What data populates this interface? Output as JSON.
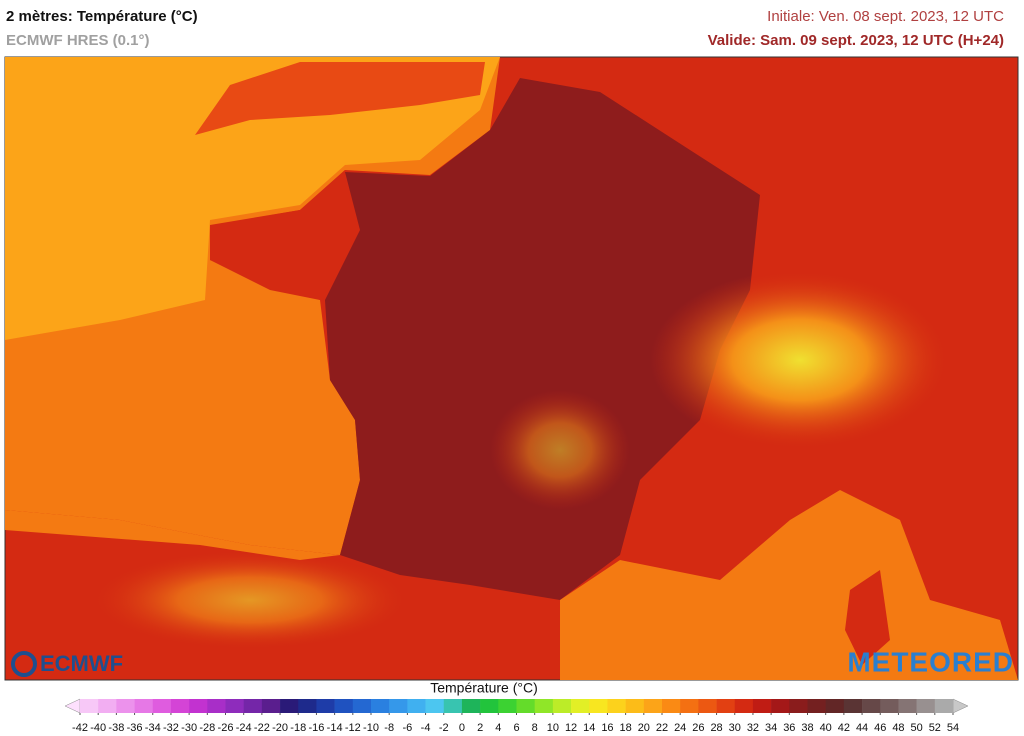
{
  "header": {
    "title": "2 mètres: Température (°C)",
    "subtitle": "ECMWF HRES (0.1°)",
    "initiale": "Initiale: Ven. 08 sept. 2023, 12 UTC",
    "valide": "Valide: Sam. 09 sept. 2023, 12 UTC (H+24)"
  },
  "logos": {
    "left": "ECMWF",
    "right": "METEORED"
  },
  "colorbar": {
    "title": "Température (°C)",
    "ticks": [
      -42,
      -40,
      -38,
      -36,
      -34,
      -32,
      -30,
      -28,
      -26,
      -24,
      -22,
      -20,
      -18,
      -16,
      -14,
      -12,
      -10,
      -8,
      -6,
      -4,
      -2,
      0,
      2,
      4,
      6,
      8,
      10,
      12,
      14,
      16,
      18,
      20,
      22,
      24,
      26,
      28,
      30,
      32,
      34,
      36,
      38,
      40,
      42,
      44,
      46,
      48,
      50,
      52,
      54
    ],
    "colors": [
      "#f7c8f7",
      "#f2aef2",
      "#ec92ec",
      "#e678e6",
      "#df5cdf",
      "#d444d6",
      "#c232d0",
      "#a82ec8",
      "#8e2cbc",
      "#7426a8",
      "#5a1e8e",
      "#2a1a78",
      "#1e2a8c",
      "#1e3ca8",
      "#1f52c0",
      "#2468d2",
      "#2a80e0",
      "#3598ea",
      "#40b0f0",
      "#4cc6f0",
      "#38c4b0",
      "#1eb45a",
      "#22c43c",
      "#3cd232",
      "#64dc2a",
      "#90e628",
      "#bcec28",
      "#e2ef26",
      "#f8e620",
      "#fcd21c",
      "#fcbc18",
      "#fca418",
      "#fa8a14",
      "#f47012",
      "#ec5812",
      "#e24012",
      "#d42a12",
      "#c01c14",
      "#a41818",
      "#8a1c1c",
      "#742020",
      "#622626",
      "#5a3434",
      "#664848",
      "#745c5c",
      "#857474",
      "#989090",
      "#aaaaaa"
    ],
    "under_color": "#fde0fd",
    "over_color": "#c8c8c8"
  }
}
